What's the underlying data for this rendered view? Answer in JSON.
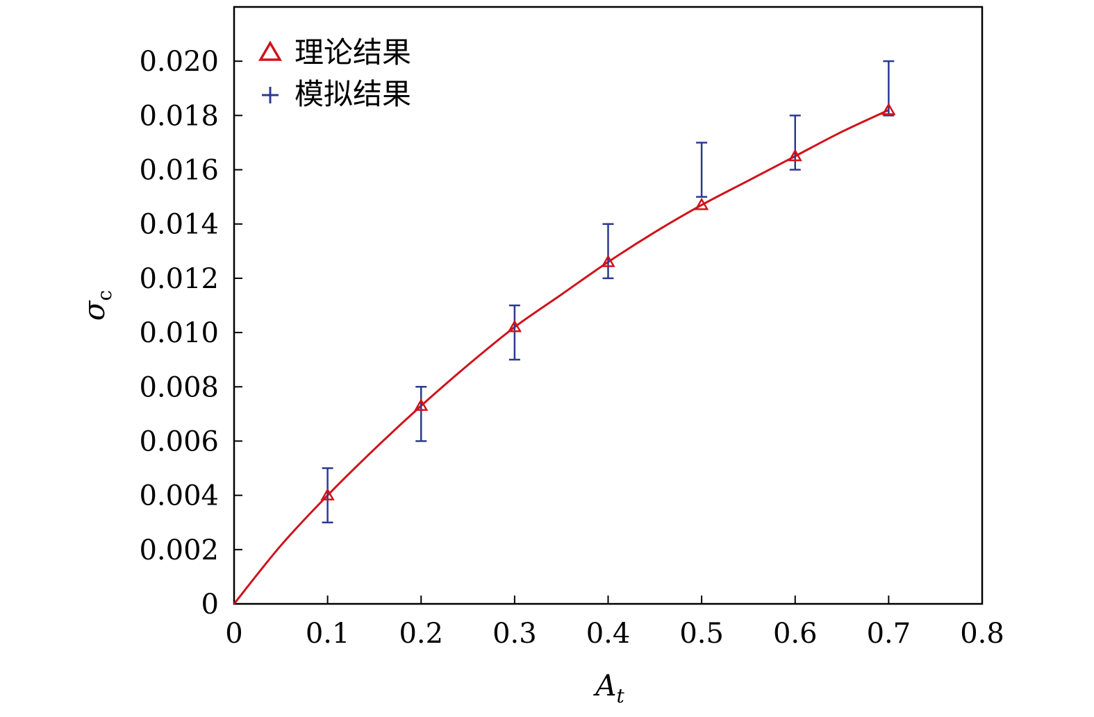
{
  "chart_data": {
    "type": "scatter",
    "xlabel": "A",
    "xlabel_sub": "t",
    "ylabel": "σ",
    "ylabel_sub": "c",
    "xlim": [
      0,
      0.8
    ],
    "ylim": [
      0,
      0.022
    ],
    "x_ticks": [
      0,
      0.1,
      0.2,
      0.3,
      0.4,
      0.5,
      0.6,
      0.7,
      0.8
    ],
    "x_tick_labels": [
      "0",
      "0.1",
      "0.2",
      "0.3",
      "0.4",
      "0.5",
      "0.6",
      "0.7",
      "0.8"
    ],
    "y_ticks": [
      0,
      0.002,
      0.004,
      0.006,
      0.008,
      0.01,
      0.012,
      0.014,
      0.016,
      0.018,
      0.02
    ],
    "y_tick_labels": [
      "0",
      "0.002",
      "0.004",
      "0.006",
      "0.008",
      "0.010",
      "0.012",
      "0.014",
      "0.016",
      "0.018",
      "0.020"
    ],
    "grid": false,
    "legend_position": "top-left",
    "legend": [
      {
        "label": "理论结果",
        "marker": "triangle",
        "color": "#d0121b"
      },
      {
        "label": "模拟结果",
        "marker": "plus",
        "color": "#2b3990"
      }
    ],
    "series": [
      {
        "name": "理论结果",
        "marker": "triangle",
        "color": "#d0121b",
        "x": [
          0.1,
          0.2,
          0.3,
          0.4,
          0.5,
          0.6,
          0.7
        ],
        "y": [
          0.004,
          0.0073,
          0.0102,
          0.0126,
          0.0147,
          0.0165,
          0.0182
        ]
      },
      {
        "name": "模拟结果",
        "marker": "plus",
        "color": "#2b3990",
        "x": [
          0.1,
          0.2,
          0.3,
          0.4,
          0.5,
          0.6,
          0.7
        ],
        "y_low": [
          0.003,
          0.006,
          0.009,
          0.012,
          0.015,
          0.016,
          0.018
        ],
        "y_high": [
          0.005,
          0.008,
          0.011,
          0.014,
          0.017,
          0.018,
          0.02
        ]
      }
    ],
    "fit_curve": {
      "color": "#d0121b",
      "x": [
        0,
        0.05,
        0.1,
        0.15,
        0.2,
        0.25,
        0.3,
        0.35,
        0.4,
        0.45,
        0.5,
        0.55,
        0.6,
        0.65,
        0.7
      ],
      "y": [
        0,
        0.00215,
        0.004,
        0.0057,
        0.0073,
        0.0088,
        0.0102,
        0.0114,
        0.0126,
        0.0137,
        0.0147,
        0.0156,
        0.0165,
        0.0174,
        0.0182
      ]
    }
  }
}
